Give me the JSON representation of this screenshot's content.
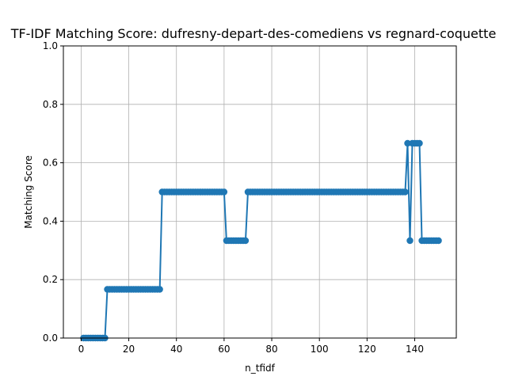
{
  "chart_data": {
    "type": "line",
    "title": "TF-IDF Matching Score: dufresny-depart-des-comediens vs regnard-coquette",
    "xlabel": "n_tfidf",
    "ylabel": "Matching Score",
    "xlim": [
      -7.45,
      157.45
    ],
    "ylim": [
      0,
      1.0
    ],
    "xticks": [
      0,
      20,
      40,
      60,
      80,
      100,
      120,
      140
    ],
    "xtick_labels": [
      "0",
      "20",
      "40",
      "60",
      "80",
      "100",
      "120",
      "140"
    ],
    "yticks": [
      0.0,
      0.2,
      0.4,
      0.6,
      0.8,
      1.0
    ],
    "ytick_labels": [
      "0.0",
      "0.2",
      "0.4",
      "0.6",
      "0.8",
      "1.0"
    ],
    "grid": true,
    "color": "#1f77b4",
    "series": [
      {
        "x": [
          1,
          2,
          3,
          4,
          5,
          6,
          7,
          8,
          9,
          10,
          11,
          12,
          13,
          14,
          15,
          16,
          17,
          18,
          19,
          20,
          21,
          22,
          23,
          24,
          25,
          26,
          27,
          28,
          29,
          30,
          31,
          32,
          33,
          34,
          35,
          36,
          37,
          38,
          39,
          40,
          41,
          42,
          43,
          44,
          45,
          46,
          47,
          48,
          49,
          50,
          51,
          52,
          53,
          54,
          55,
          56,
          57,
          58,
          59,
          60,
          61,
          62,
          63,
          64,
          65,
          66,
          67,
          68,
          69,
          70,
          71,
          72,
          73,
          74,
          75,
          76,
          77,
          78,
          79,
          80,
          81,
          82,
          83,
          84,
          85,
          86,
          87,
          88,
          89,
          90,
          91,
          92,
          93,
          94,
          95,
          96,
          97,
          98,
          99,
          100,
          101,
          102,
          103,
          104,
          105,
          106,
          107,
          108,
          109,
          110,
          111,
          112,
          113,
          114,
          115,
          116,
          117,
          118,
          119,
          120,
          121,
          122,
          123,
          124,
          125,
          126,
          127,
          128,
          129,
          130,
          131,
          132,
          133,
          134,
          135,
          136,
          137,
          138,
          139,
          140,
          141,
          142,
          143,
          144,
          145,
          146,
          147,
          148,
          149,
          150
        ],
        "y": [
          0,
          0,
          0,
          0,
          0,
          0,
          0,
          0,
          0,
          0,
          0.1667,
          0.1667,
          0.1667,
          0.1667,
          0.1667,
          0.1667,
          0.1667,
          0.1667,
          0.1667,
          0.1667,
          0.1667,
          0.1667,
          0.1667,
          0.1667,
          0.1667,
          0.1667,
          0.1667,
          0.1667,
          0.1667,
          0.1667,
          0.1667,
          0.1667,
          0.1667,
          0.5,
          0.5,
          0.5,
          0.5,
          0.5,
          0.5,
          0.5,
          0.5,
          0.5,
          0.5,
          0.5,
          0.5,
          0.5,
          0.5,
          0.5,
          0.5,
          0.5,
          0.5,
          0.5,
          0.5,
          0.5,
          0.5,
          0.5,
          0.5,
          0.5,
          0.5,
          0.5,
          0.3333,
          0.3333,
          0.3333,
          0.3333,
          0.3333,
          0.3333,
          0.3333,
          0.3333,
          0.3333,
          0.5,
          0.5,
          0.5,
          0.5,
          0.5,
          0.5,
          0.5,
          0.5,
          0.5,
          0.5,
          0.5,
          0.5,
          0.5,
          0.5,
          0.5,
          0.5,
          0.5,
          0.5,
          0.5,
          0.5,
          0.5,
          0.5,
          0.5,
          0.5,
          0.5,
          0.5,
          0.5,
          0.5,
          0.5,
          0.5,
          0.5,
          0.5,
          0.5,
          0.5,
          0.5,
          0.5,
          0.5,
          0.5,
          0.5,
          0.5,
          0.5,
          0.5,
          0.5,
          0.5,
          0.5,
          0.5,
          0.5,
          0.5,
          0.5,
          0.5,
          0.5,
          0.5,
          0.5,
          0.5,
          0.5,
          0.5,
          0.5,
          0.5,
          0.5,
          0.5,
          0.5,
          0.5,
          0.5,
          0.5,
          0.5,
          0.5,
          0.5,
          0.6667,
          0.3333,
          0.6667,
          0.6667,
          0.6667,
          0.6667,
          0.3333,
          0.3333,
          0.3333,
          0.3333,
          0.3333,
          0.3333,
          0.3333,
          0.3333
        ]
      }
    ]
  }
}
